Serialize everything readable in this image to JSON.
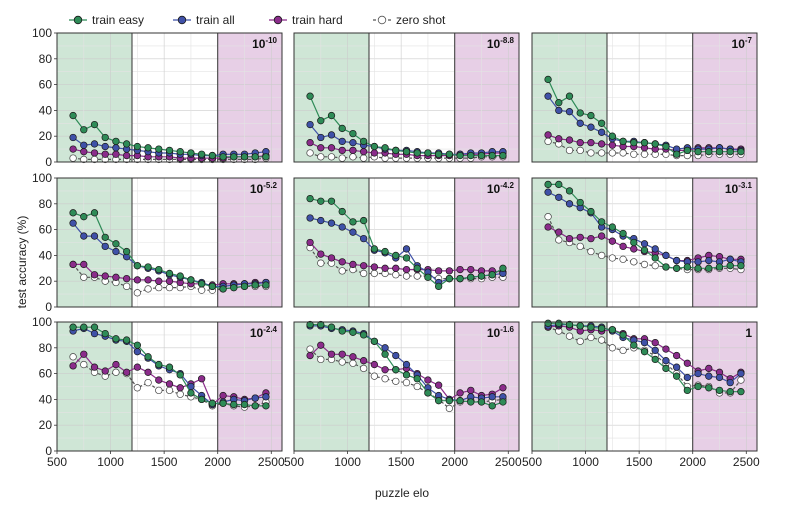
{
  "figure": {
    "ylabel": "test accuracy (%)",
    "xlabel": "puzzle elo"
  },
  "legend": [
    {
      "key": "easy",
      "label": "train easy"
    },
    {
      "key": "all",
      "label": "train all"
    },
    {
      "key": "hard",
      "label": "train hard"
    },
    {
      "key": "zero",
      "label": "zero shot"
    }
  ],
  "colors": {
    "easy": "#2e8b57",
    "all": "#3f51a8",
    "hard": "#8b2c8b",
    "zero": "#555555",
    "easy_region": "#cfe6d6",
    "hard_region": "#e7cfe6"
  },
  "chart_data": {
    "type": "line",
    "x": [
      650,
      750,
      850,
      950,
      1050,
      1150,
      1250,
      1350,
      1450,
      1550,
      1650,
      1750,
      1850,
      1950,
      2050,
      2150,
      2250,
      2350,
      2450
    ],
    "xlim": [
      500,
      2600
    ],
    "ylim": [
      0,
      100
    ],
    "xticks": [
      500,
      1000,
      1500,
      2000,
      2500
    ],
    "yticks": [
      0,
      20,
      40,
      60,
      80,
      100
    ],
    "grid": true,
    "legend_position": "top",
    "easy_region": [
      500,
      1200
    ],
    "hard_region": [
      2000,
      2600
    ],
    "panels": [
      {
        "base": "10",
        "exp": "-10",
        "series": {
          "easy": [
            36,
            25,
            29,
            19,
            16,
            14,
            12,
            11,
            10,
            9,
            8,
            7,
            6,
            5,
            4,
            4,
            4,
            4,
            4
          ],
          "all": [
            19,
            13,
            14,
            12,
            11,
            10,
            9,
            8,
            7,
            7,
            6,
            6,
            5,
            5,
            6,
            6,
            6,
            7,
            8
          ],
          "hard": [
            10,
            8,
            7,
            6,
            6,
            5,
            5,
            4,
            4,
            4,
            3,
            3,
            3,
            3,
            3,
            4,
            4,
            4,
            5
          ],
          "zero": [
            3,
            2,
            2,
            2,
            2,
            2,
            2,
            2,
            2,
            2,
            2,
            2,
            2,
            2,
            2,
            2,
            2,
            2,
            3
          ]
        }
      },
      {
        "base": "10",
        "exp": "-8.8",
        "series": {
          "easy": [
            51,
            32,
            36,
            26,
            22,
            16,
            12,
            11,
            9,
            8,
            7,
            7,
            6,
            6,
            5,
            5,
            5,
            5,
            5
          ],
          "all": [
            29,
            19,
            21,
            16,
            15,
            13,
            12,
            10,
            9,
            9,
            8,
            7,
            7,
            6,
            6,
            7,
            7,
            8,
            8
          ],
          "hard": [
            15,
            11,
            11,
            9,
            9,
            8,
            7,
            7,
            6,
            6,
            5,
            5,
            5,
            5,
            6,
            6,
            6,
            7,
            7
          ],
          "zero": [
            7,
            4,
            4,
            3,
            4,
            3,
            4,
            3,
            3,
            3,
            3,
            3,
            3,
            3,
            3,
            3,
            4,
            4,
            4
          ]
        }
      },
      {
        "base": "10",
        "exp": "-7",
        "series": {
          "easy": [
            64,
            46,
            51,
            38,
            36,
            30,
            20,
            16,
            15,
            15,
            14,
            12,
            6,
            9,
            8,
            8,
            8,
            8,
            8
          ],
          "all": [
            51,
            40,
            39,
            30,
            27,
            23,
            18,
            16,
            16,
            15,
            14,
            13,
            10,
            11,
            10,
            10,
            11,
            10,
            9
          ],
          "hard": [
            21,
            18,
            17,
            15,
            15,
            14,
            13,
            12,
            12,
            11,
            10,
            10,
            9,
            9,
            11,
            11,
            11,
            10,
            10
          ],
          "zero": [
            16,
            14,
            9,
            9,
            7,
            7,
            7,
            7,
            6,
            6,
            6,
            6,
            5,
            5,
            5,
            6,
            6,
            6,
            6
          ]
        }
      },
      {
        "base": "10",
        "exp": "-5.2",
        "series": {
          "easy": [
            73,
            70,
            73,
            54,
            49,
            43,
            32,
            31,
            29,
            26,
            24,
            21,
            18,
            16,
            14,
            15,
            16,
            17,
            17
          ],
          "all": [
            65,
            55,
            55,
            47,
            43,
            39,
            32,
            30,
            28,
            25,
            23,
            21,
            19,
            16,
            16,
            17,
            18,
            18,
            19
          ],
          "hard": [
            33,
            33,
            25,
            24,
            23,
            22,
            21,
            21,
            20,
            20,
            19,
            18,
            18,
            17,
            18,
            18,
            18,
            19,
            19
          ],
          "zero": [
            33,
            23,
            23,
            20,
            19,
            16,
            11,
            14,
            15,
            15,
            15,
            16,
            13,
            13,
            14,
            15,
            16,
            16,
            16
          ]
        }
      },
      {
        "base": "10",
        "exp": "-4.2",
        "series": {
          "easy": [
            84,
            82,
            82,
            74,
            66,
            67,
            45,
            43,
            40,
            38,
            30,
            23,
            16,
            22,
            22,
            23,
            24,
            25,
            30
          ],
          "all": [
            69,
            67,
            65,
            62,
            58,
            53,
            44,
            42,
            38,
            45,
            32,
            27,
            19,
            22,
            22,
            23,
            24,
            25,
            26
          ],
          "hard": [
            50,
            41,
            38,
            35,
            33,
            32,
            31,
            30,
            30,
            29,
            29,
            29,
            28,
            28,
            29,
            29,
            28,
            28,
            27
          ],
          "zero": [
            46,
            34,
            34,
            28,
            29,
            26,
            26,
            26,
            25,
            24,
            24,
            24,
            22,
            22,
            22,
            22,
            22,
            23,
            23
          ]
        }
      },
      {
        "base": "10",
        "exp": "-3.1",
        "series": {
          "easy": [
            95,
            95,
            90,
            81,
            74,
            66,
            62,
            57,
            50,
            44,
            38,
            31,
            30,
            31,
            30,
            30,
            31,
            32,
            32
          ],
          "all": [
            89,
            85,
            80,
            77,
            73,
            62,
            60,
            55,
            53,
            49,
            45,
            40,
            36,
            35,
            35,
            36,
            35,
            37,
            35
          ],
          "hard": [
            62,
            58,
            53,
            54,
            53,
            55,
            51,
            47,
            45,
            43,
            42,
            40,
            36,
            36,
            38,
            40,
            39,
            37,
            37
          ],
          "zero": [
            70,
            52,
            50,
            47,
            43,
            40,
            38,
            37,
            35,
            33,
            32,
            31,
            30,
            29,
            29,
            29,
            30,
            30,
            29
          ]
        }
      },
      {
        "base": "10",
        "exp": "-2.4",
        "series": {
          "easy": [
            96,
            96,
            96,
            91,
            87,
            86,
            82,
            73,
            67,
            65,
            59,
            45,
            40,
            37,
            37,
            36,
            36,
            35,
            35
          ],
          "all": [
            93,
            95,
            91,
            89,
            86,
            85,
            77,
            72,
            66,
            63,
            60,
            50,
            43,
            36,
            38,
            40,
            39,
            41,
            42
          ],
          "hard": [
            66,
            75,
            65,
            62,
            67,
            61,
            65,
            61,
            55,
            52,
            49,
            52,
            56,
            36,
            43,
            42,
            40,
            41,
            45
          ],
          "zero": [
            73,
            67,
            61,
            58,
            61,
            60,
            49,
            53,
            47,
            47,
            44,
            42,
            40,
            35,
            37,
            35,
            34,
            35,
            38
          ]
        }
      },
      {
        "base": "10",
        "exp": "-1.6",
        "series": {
          "easy": [
            98,
            98,
            96,
            93,
            92,
            90,
            85,
            75,
            63,
            59,
            56,
            45,
            39,
            39,
            39,
            38,
            38,
            35,
            38
          ],
          "all": [
            97,
            97,
            95,
            94,
            93,
            91,
            85,
            80,
            74,
            67,
            59,
            49,
            43,
            40,
            39,
            42,
            41,
            42,
            42
          ],
          "hard": [
            74,
            82,
            75,
            75,
            73,
            70,
            67,
            63,
            63,
            64,
            60,
            55,
            51,
            40,
            45,
            47,
            43,
            44,
            49
          ],
          "zero": [
            79,
            71,
            71,
            69,
            68,
            64,
            58,
            56,
            54,
            53,
            50,
            45,
            40,
            33,
            38,
            39,
            38,
            39,
            40
          ]
        }
      },
      {
        "base": "1",
        "exp": "",
        "series": {
          "easy": [
            99,
            99,
            98,
            97,
            96,
            95,
            94,
            90,
            82,
            77,
            71,
            64,
            58,
            47,
            50,
            49,
            47,
            46,
            46
          ],
          "all": [
            97,
            98,
            98,
            97,
            97,
            96,
            93,
            88,
            86,
            84,
            78,
            70,
            65,
            57,
            60,
            58,
            57,
            53,
            60
          ],
          "hard": [
            96,
            97,
            96,
            93,
            94,
            93,
            94,
            91,
            87,
            87,
            84,
            79,
            74,
            68,
            62,
            64,
            61,
            56,
            61
          ],
          "zero": [
            96,
            93,
            89,
            85,
            88,
            86,
            80,
            78,
            80,
            78,
            74,
            68,
            60,
            50,
            51,
            50,
            45,
            45,
            55
          ]
        }
      }
    ]
  }
}
